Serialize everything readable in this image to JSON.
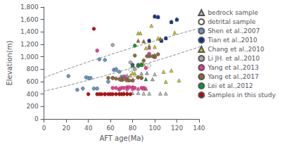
{
  "chart_data": {
    "type": "scatter",
    "xlabel": "AFT age(Ma)",
    "ylabel": "Elevation(m)",
    "xlim": [
      0,
      140
    ],
    "ylim": [
      0,
      1800
    ],
    "xticks": [
      0,
      20,
      40,
      60,
      80,
      100,
      120,
      140
    ],
    "yticks": [
      0,
      200,
      400,
      600,
      800,
      1000,
      1200,
      1400,
      1600,
      1800
    ],
    "grid": false,
    "legend": "right",
    "series": [
      {
        "name": "bedrock sample",
        "color": "#bbbbbb",
        "marker": "triangle",
        "x": [
          68,
          72,
          75,
          80,
          85,
          90,
          95,
          100,
          105,
          110
        ],
        "y": [
          420,
          420,
          430,
          420,
          420,
          410,
          410,
          720,
          410,
          410
        ]
      },
      {
        "name": "detrital sample",
        "color": "#ffffff",
        "marker": "circle",
        "x": [
          78,
          82,
          88,
          95
        ],
        "y": [
          790,
          660,
          880,
          860
        ]
      },
      {
        "name": "Shen et al.,2007",
        "color": "#6699cc",
        "marker": "circle",
        "x": [
          22,
          30,
          35,
          38,
          40,
          42,
          45,
          48,
          50,
          55,
          58,
          62,
          63,
          65,
          65,
          68,
          70,
          72,
          75
        ],
        "y": [
          690,
          470,
          490,
          670,
          660,
          660,
          490,
          490,
          960,
          950,
          600,
          660,
          790,
          800,
          790,
          760,
          680,
          680,
          670
        ]
      },
      {
        "name": "Tian et al.,2010",
        "color": "#003399",
        "marker": "circle",
        "x": [
          80,
          95,
          100,
          103,
          106,
          110,
          115,
          120
        ],
        "y": [
          870,
          1260,
          1650,
          1640,
          1260,
          1300,
          1560,
          1600
        ]
      },
      {
        "name": "Tian et al.,2010",
        "color": "#003399",
        "marker": "triangle",
        "x": [
          80,
          95,
          100,
          103,
          106,
          110,
          115,
          120
        ],
        "y": [
          870,
          1260,
          1650,
          1640,
          1260,
          1300,
          1560,
          1600
        ]
      },
      {
        "name": "Chang et al.,2010",
        "color": "#cccc00",
        "marker": "triangle",
        "x": [
          72,
          78,
          80,
          82,
          85,
          87,
          90,
          92,
          95,
          97,
          100,
          103,
          108,
          110,
          115,
          118,
          122
        ],
        "y": [
          680,
          700,
          740,
          730,
          1380,
          1380,
          880,
          1140,
          1180,
          1500,
          1160,
          1300,
          760,
          600,
          780,
          1390,
          620
        ]
      },
      {
        "name": "Li JH. et al.,2010",
        "color": "#aaaaaa",
        "marker": "circle",
        "x": [
          62,
          78,
          82,
          85,
          88
        ],
        "y": [
          1190,
          910,
          800,
          670,
          660
        ]
      },
      {
        "name": "Li JH. et al.,2010",
        "color": "#aaaaaa",
        "marker": "triangle",
        "x": [
          70,
          75,
          80,
          88,
          93,
          98
        ],
        "y": [
          660,
          700,
          860,
          730,
          740,
          640
        ]
      },
      {
        "name": "Yang et al.,2013",
        "color": "#ff3399",
        "marker": "circle",
        "x": [
          48,
          55,
          62,
          65,
          68,
          70,
          72,
          73,
          75,
          77,
          80,
          82,
          85,
          88,
          90,
          92,
          95,
          100
        ],
        "y": [
          1100,
          400,
          500,
          500,
          480,
          500,
          500,
          680,
          510,
          510,
          510,
          500,
          850,
          500,
          500,
          820,
          1050,
          1000
        ]
      },
      {
        "name": "Yang et al.,2013",
        "color": "#ff3399",
        "marker": "triangle",
        "x": [
          68,
          75,
          80,
          85,
          90,
          92,
          95,
          100
        ],
        "y": [
          490,
          490,
          490,
          490,
          490,
          490,
          1150,
          1000
        ]
      },
      {
        "name": "Yang et al.,2017",
        "color": "#996633",
        "marker": "circle",
        "x": [
          58,
          62,
          65,
          68,
          70,
          72,
          75,
          77,
          80,
          82,
          85,
          88,
          90,
          93,
          95,
          98,
          100,
          103
        ],
        "y": [
          660,
          660,
          650,
          640,
          640,
          640,
          630,
          620,
          620,
          1020,
          670,
          660,
          940,
          1010,
          1010,
          1010,
          1010,
          1040
        ]
      },
      {
        "name": "Yang et al.,2017",
        "color": "#996633",
        "marker": "triangle",
        "x": [
          70,
          75,
          80,
          85,
          90,
          95,
          100,
          105
        ],
        "y": [
          630,
          625,
          625,
          1260,
          1250,
          1020,
          1030,
          1290
        ]
      },
      {
        "name": "Lei et al.,2012",
        "color": "#009933",
        "marker": "circle",
        "x": [
          82,
          85,
          88
        ],
        "y": [
          1180,
          870,
          875
        ]
      },
      {
        "name": "Lei et al.,2012",
        "color": "#009933",
        "marker": "triangle",
        "x": [
          80,
          85,
          88,
          92
        ],
        "y": [
          860,
          870,
          870,
          640
        ]
      },
      {
        "name": "Samples in this study",
        "color": "#cc0000",
        "marker": "circle",
        "x": [
          40,
          45,
          48,
          50,
          52,
          55,
          58,
          60,
          62,
          65,
          68,
          70,
          72,
          75,
          78
        ],
        "y": [
          400,
          1450,
          400,
          400,
          400,
          400,
          400,
          400,
          400,
          400,
          400,
          400,
          400,
          400,
          400
        ]
      }
    ],
    "ellipse": {
      "cx": 92,
      "cy": 1050,
      "width": 58,
      "height": 1380,
      "angle": -10
    }
  }
}
